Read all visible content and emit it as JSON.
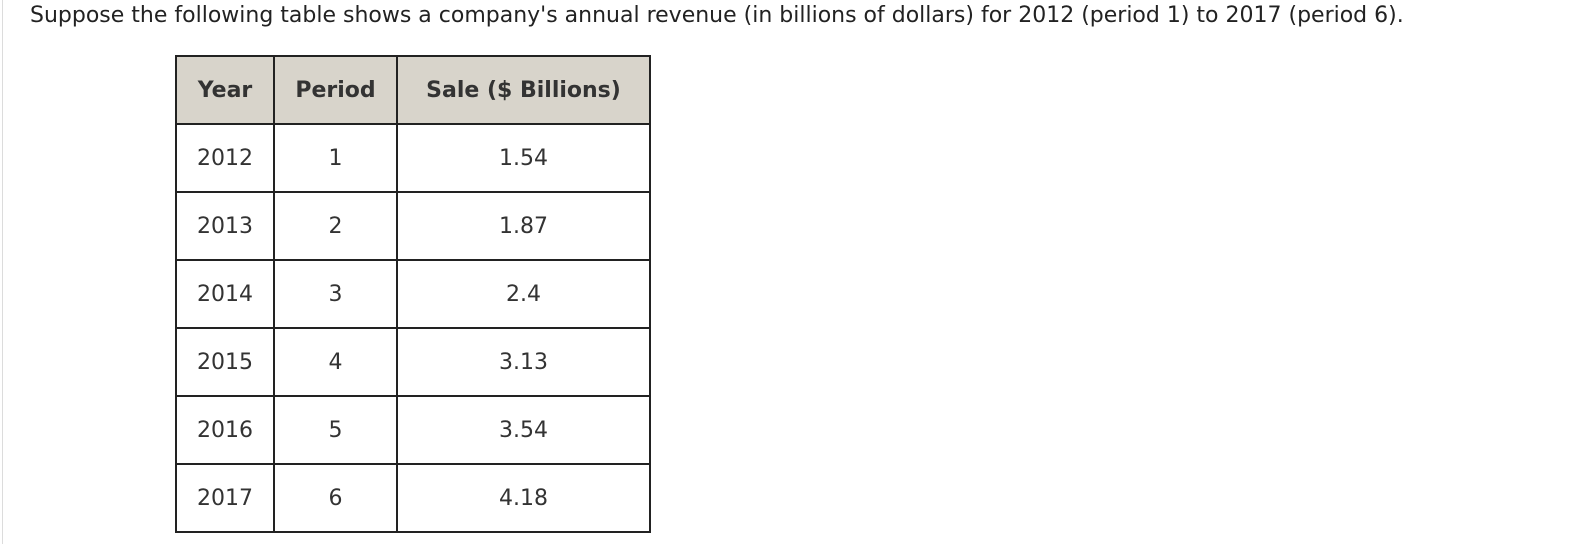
{
  "question": "Suppose the following table shows a company's annual revenue (in billions of dollars) for 2012 (period 1) to 2017 (period 6).",
  "table": {
    "headers": [
      "Year",
      "Period",
      "Sale ($ Billions)"
    ],
    "rows": [
      {
        "year": "2012",
        "period": "1",
        "sale": "1.54"
      },
      {
        "year": "2013",
        "period": "2",
        "sale": "1.87"
      },
      {
        "year": "2014",
        "period": "3",
        "sale": "2.4"
      },
      {
        "year": "2015",
        "period": "4",
        "sale": "3.13"
      },
      {
        "year": "2016",
        "period": "5",
        "sale": "3.54"
      },
      {
        "year": "2017",
        "period": "6",
        "sale": "4.18"
      }
    ]
  },
  "colors": {
    "header_background": "#d8d4cb",
    "sale_value": "#ff0000",
    "text": "#222222"
  }
}
